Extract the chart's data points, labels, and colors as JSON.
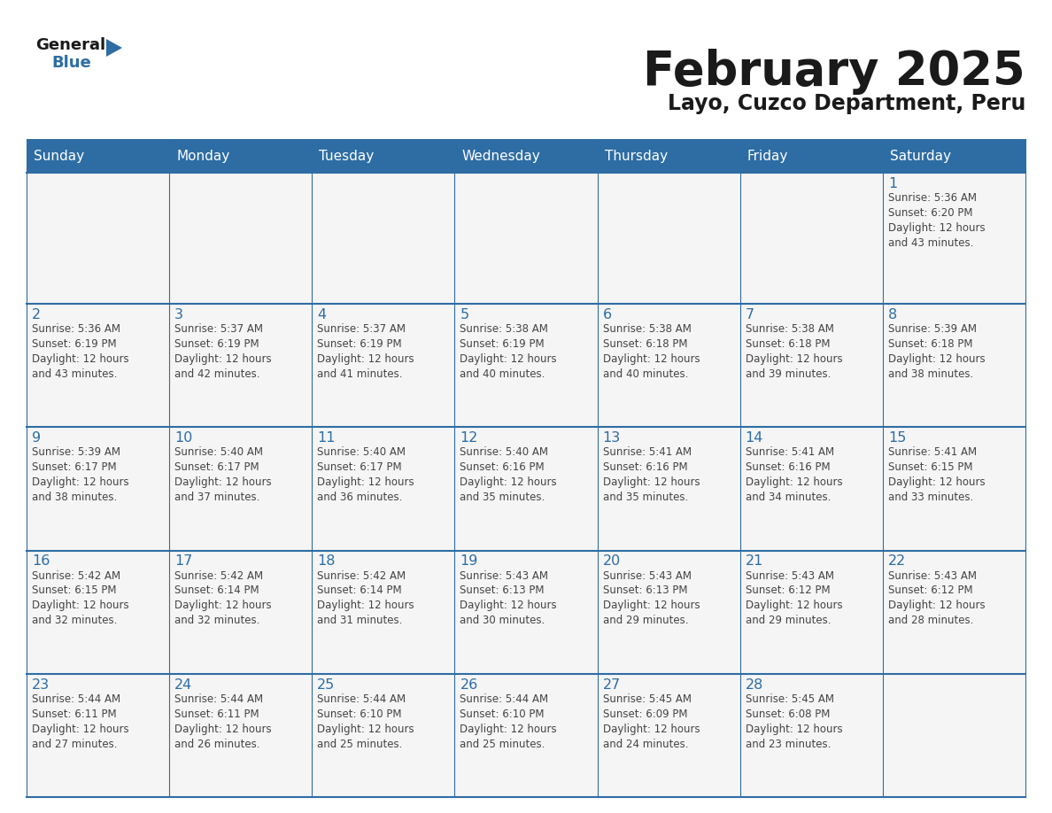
{
  "title": "February 2025",
  "subtitle": "Layo, Cuzco Department, Peru",
  "header_bg": "#2E6DA4",
  "header_text": "#FFFFFF",
  "cell_bg": "#F5F5F5",
  "day_number_color": "#2E6DA4",
  "body_text_color": "#444444",
  "border_color": "#2E6DA4",
  "line_color": "#BBBBBB",
  "days_of_week": [
    "Sunday",
    "Monday",
    "Tuesday",
    "Wednesday",
    "Thursday",
    "Friday",
    "Saturday"
  ],
  "weeks": [
    [
      {
        "day": "",
        "info": ""
      },
      {
        "day": "",
        "info": ""
      },
      {
        "day": "",
        "info": ""
      },
      {
        "day": "",
        "info": ""
      },
      {
        "day": "",
        "info": ""
      },
      {
        "day": "",
        "info": ""
      },
      {
        "day": "1",
        "info": "Sunrise: 5:36 AM\nSunset: 6:20 PM\nDaylight: 12 hours\nand 43 minutes."
      }
    ],
    [
      {
        "day": "2",
        "info": "Sunrise: 5:36 AM\nSunset: 6:19 PM\nDaylight: 12 hours\nand 43 minutes."
      },
      {
        "day": "3",
        "info": "Sunrise: 5:37 AM\nSunset: 6:19 PM\nDaylight: 12 hours\nand 42 minutes."
      },
      {
        "day": "4",
        "info": "Sunrise: 5:37 AM\nSunset: 6:19 PM\nDaylight: 12 hours\nand 41 minutes."
      },
      {
        "day": "5",
        "info": "Sunrise: 5:38 AM\nSunset: 6:19 PM\nDaylight: 12 hours\nand 40 minutes."
      },
      {
        "day": "6",
        "info": "Sunrise: 5:38 AM\nSunset: 6:18 PM\nDaylight: 12 hours\nand 40 minutes."
      },
      {
        "day": "7",
        "info": "Sunrise: 5:38 AM\nSunset: 6:18 PM\nDaylight: 12 hours\nand 39 minutes."
      },
      {
        "day": "8",
        "info": "Sunrise: 5:39 AM\nSunset: 6:18 PM\nDaylight: 12 hours\nand 38 minutes."
      }
    ],
    [
      {
        "day": "9",
        "info": "Sunrise: 5:39 AM\nSunset: 6:17 PM\nDaylight: 12 hours\nand 38 minutes."
      },
      {
        "day": "10",
        "info": "Sunrise: 5:40 AM\nSunset: 6:17 PM\nDaylight: 12 hours\nand 37 minutes."
      },
      {
        "day": "11",
        "info": "Sunrise: 5:40 AM\nSunset: 6:17 PM\nDaylight: 12 hours\nand 36 minutes."
      },
      {
        "day": "12",
        "info": "Sunrise: 5:40 AM\nSunset: 6:16 PM\nDaylight: 12 hours\nand 35 minutes."
      },
      {
        "day": "13",
        "info": "Sunrise: 5:41 AM\nSunset: 6:16 PM\nDaylight: 12 hours\nand 35 minutes."
      },
      {
        "day": "14",
        "info": "Sunrise: 5:41 AM\nSunset: 6:16 PM\nDaylight: 12 hours\nand 34 minutes."
      },
      {
        "day": "15",
        "info": "Sunrise: 5:41 AM\nSunset: 6:15 PM\nDaylight: 12 hours\nand 33 minutes."
      }
    ],
    [
      {
        "day": "16",
        "info": "Sunrise: 5:42 AM\nSunset: 6:15 PM\nDaylight: 12 hours\nand 32 minutes."
      },
      {
        "day": "17",
        "info": "Sunrise: 5:42 AM\nSunset: 6:14 PM\nDaylight: 12 hours\nand 32 minutes."
      },
      {
        "day": "18",
        "info": "Sunrise: 5:42 AM\nSunset: 6:14 PM\nDaylight: 12 hours\nand 31 minutes."
      },
      {
        "day": "19",
        "info": "Sunrise: 5:43 AM\nSunset: 6:13 PM\nDaylight: 12 hours\nand 30 minutes."
      },
      {
        "day": "20",
        "info": "Sunrise: 5:43 AM\nSunset: 6:13 PM\nDaylight: 12 hours\nand 29 minutes."
      },
      {
        "day": "21",
        "info": "Sunrise: 5:43 AM\nSunset: 6:12 PM\nDaylight: 12 hours\nand 29 minutes."
      },
      {
        "day": "22",
        "info": "Sunrise: 5:43 AM\nSunset: 6:12 PM\nDaylight: 12 hours\nand 28 minutes."
      }
    ],
    [
      {
        "day": "23",
        "info": "Sunrise: 5:44 AM\nSunset: 6:11 PM\nDaylight: 12 hours\nand 27 minutes."
      },
      {
        "day": "24",
        "info": "Sunrise: 5:44 AM\nSunset: 6:11 PM\nDaylight: 12 hours\nand 26 minutes."
      },
      {
        "day": "25",
        "info": "Sunrise: 5:44 AM\nSunset: 6:10 PM\nDaylight: 12 hours\nand 25 minutes."
      },
      {
        "day": "26",
        "info": "Sunrise: 5:44 AM\nSunset: 6:10 PM\nDaylight: 12 hours\nand 25 minutes."
      },
      {
        "day": "27",
        "info": "Sunrise: 5:45 AM\nSunset: 6:09 PM\nDaylight: 12 hours\nand 24 minutes."
      },
      {
        "day": "28",
        "info": "Sunrise: 5:45 AM\nSunset: 6:08 PM\nDaylight: 12 hours\nand 23 minutes."
      },
      {
        "day": "",
        "info": ""
      }
    ]
  ],
  "logo_general_color": "#1a1a1a",
  "logo_blue_color": "#2E6DA4",
  "logo_triangle_color": "#2E6DA4"
}
